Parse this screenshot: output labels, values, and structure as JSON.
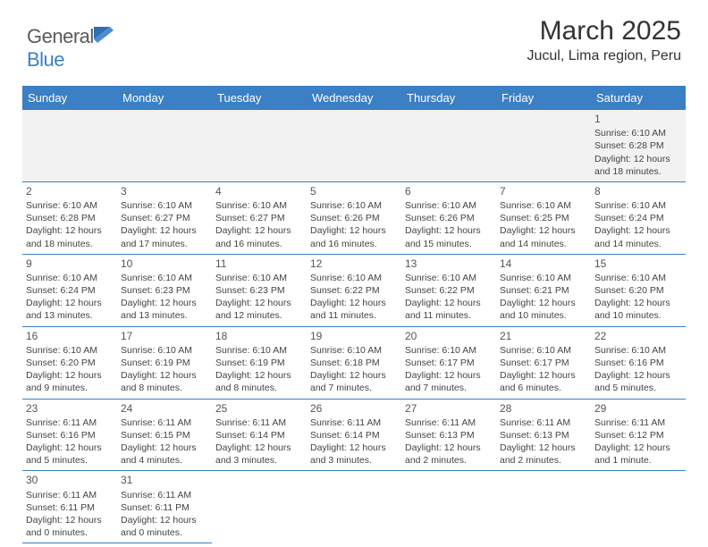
{
  "logo": {
    "text_a": "General",
    "text_b": "Blue"
  },
  "title": "March 2025",
  "location": "Jucul, Lima region, Peru",
  "colors": {
    "header_bg": "#3b7fc4",
    "header_text": "#ffffff",
    "border": "#3b7fc4",
    "blank_bg": "#f2f2f2",
    "text": "#444444"
  },
  "layout": {
    "blanks_before": 6
  },
  "day_headers": [
    "Sunday",
    "Monday",
    "Tuesday",
    "Wednesday",
    "Thursday",
    "Friday",
    "Saturday"
  ],
  "days": [
    {
      "n": "1",
      "sunrise": "Sunrise: 6:10 AM",
      "sunset": "Sunset: 6:28 PM",
      "d1": "Daylight: 12 hours",
      "d2": "and 18 minutes."
    },
    {
      "n": "2",
      "sunrise": "Sunrise: 6:10 AM",
      "sunset": "Sunset: 6:28 PM",
      "d1": "Daylight: 12 hours",
      "d2": "and 18 minutes."
    },
    {
      "n": "3",
      "sunrise": "Sunrise: 6:10 AM",
      "sunset": "Sunset: 6:27 PM",
      "d1": "Daylight: 12 hours",
      "d2": "and 17 minutes."
    },
    {
      "n": "4",
      "sunrise": "Sunrise: 6:10 AM",
      "sunset": "Sunset: 6:27 PM",
      "d1": "Daylight: 12 hours",
      "d2": "and 16 minutes."
    },
    {
      "n": "5",
      "sunrise": "Sunrise: 6:10 AM",
      "sunset": "Sunset: 6:26 PM",
      "d1": "Daylight: 12 hours",
      "d2": "and 16 minutes."
    },
    {
      "n": "6",
      "sunrise": "Sunrise: 6:10 AM",
      "sunset": "Sunset: 6:26 PM",
      "d1": "Daylight: 12 hours",
      "d2": "and 15 minutes."
    },
    {
      "n": "7",
      "sunrise": "Sunrise: 6:10 AM",
      "sunset": "Sunset: 6:25 PM",
      "d1": "Daylight: 12 hours",
      "d2": "and 14 minutes."
    },
    {
      "n": "8",
      "sunrise": "Sunrise: 6:10 AM",
      "sunset": "Sunset: 6:24 PM",
      "d1": "Daylight: 12 hours",
      "d2": "and 14 minutes."
    },
    {
      "n": "9",
      "sunrise": "Sunrise: 6:10 AM",
      "sunset": "Sunset: 6:24 PM",
      "d1": "Daylight: 12 hours",
      "d2": "and 13 minutes."
    },
    {
      "n": "10",
      "sunrise": "Sunrise: 6:10 AM",
      "sunset": "Sunset: 6:23 PM",
      "d1": "Daylight: 12 hours",
      "d2": "and 13 minutes."
    },
    {
      "n": "11",
      "sunrise": "Sunrise: 6:10 AM",
      "sunset": "Sunset: 6:23 PM",
      "d1": "Daylight: 12 hours",
      "d2": "and 12 minutes."
    },
    {
      "n": "12",
      "sunrise": "Sunrise: 6:10 AM",
      "sunset": "Sunset: 6:22 PM",
      "d1": "Daylight: 12 hours",
      "d2": "and 11 minutes."
    },
    {
      "n": "13",
      "sunrise": "Sunrise: 6:10 AM",
      "sunset": "Sunset: 6:22 PM",
      "d1": "Daylight: 12 hours",
      "d2": "and 11 minutes."
    },
    {
      "n": "14",
      "sunrise": "Sunrise: 6:10 AM",
      "sunset": "Sunset: 6:21 PM",
      "d1": "Daylight: 12 hours",
      "d2": "and 10 minutes."
    },
    {
      "n": "15",
      "sunrise": "Sunrise: 6:10 AM",
      "sunset": "Sunset: 6:20 PM",
      "d1": "Daylight: 12 hours",
      "d2": "and 10 minutes."
    },
    {
      "n": "16",
      "sunrise": "Sunrise: 6:10 AM",
      "sunset": "Sunset: 6:20 PM",
      "d1": "Daylight: 12 hours",
      "d2": "and 9 minutes."
    },
    {
      "n": "17",
      "sunrise": "Sunrise: 6:10 AM",
      "sunset": "Sunset: 6:19 PM",
      "d1": "Daylight: 12 hours",
      "d2": "and 8 minutes."
    },
    {
      "n": "18",
      "sunrise": "Sunrise: 6:10 AM",
      "sunset": "Sunset: 6:19 PM",
      "d1": "Daylight: 12 hours",
      "d2": "and 8 minutes."
    },
    {
      "n": "19",
      "sunrise": "Sunrise: 6:10 AM",
      "sunset": "Sunset: 6:18 PM",
      "d1": "Daylight: 12 hours",
      "d2": "and 7 minutes."
    },
    {
      "n": "20",
      "sunrise": "Sunrise: 6:10 AM",
      "sunset": "Sunset: 6:17 PM",
      "d1": "Daylight: 12 hours",
      "d2": "and 7 minutes."
    },
    {
      "n": "21",
      "sunrise": "Sunrise: 6:10 AM",
      "sunset": "Sunset: 6:17 PM",
      "d1": "Daylight: 12 hours",
      "d2": "and 6 minutes."
    },
    {
      "n": "22",
      "sunrise": "Sunrise: 6:10 AM",
      "sunset": "Sunset: 6:16 PM",
      "d1": "Daylight: 12 hours",
      "d2": "and 5 minutes."
    },
    {
      "n": "23",
      "sunrise": "Sunrise: 6:11 AM",
      "sunset": "Sunset: 6:16 PM",
      "d1": "Daylight: 12 hours",
      "d2": "and 5 minutes."
    },
    {
      "n": "24",
      "sunrise": "Sunrise: 6:11 AM",
      "sunset": "Sunset: 6:15 PM",
      "d1": "Daylight: 12 hours",
      "d2": "and 4 minutes."
    },
    {
      "n": "25",
      "sunrise": "Sunrise: 6:11 AM",
      "sunset": "Sunset: 6:14 PM",
      "d1": "Daylight: 12 hours",
      "d2": "and 3 minutes."
    },
    {
      "n": "26",
      "sunrise": "Sunrise: 6:11 AM",
      "sunset": "Sunset: 6:14 PM",
      "d1": "Daylight: 12 hours",
      "d2": "and 3 minutes."
    },
    {
      "n": "27",
      "sunrise": "Sunrise: 6:11 AM",
      "sunset": "Sunset: 6:13 PM",
      "d1": "Daylight: 12 hours",
      "d2": "and 2 minutes."
    },
    {
      "n": "28",
      "sunrise": "Sunrise: 6:11 AM",
      "sunset": "Sunset: 6:13 PM",
      "d1": "Daylight: 12 hours",
      "d2": "and 2 minutes."
    },
    {
      "n": "29",
      "sunrise": "Sunrise: 6:11 AM",
      "sunset": "Sunset: 6:12 PM",
      "d1": "Daylight: 12 hours",
      "d2": "and 1 minute."
    },
    {
      "n": "30",
      "sunrise": "Sunrise: 6:11 AM",
      "sunset": "Sunset: 6:11 PM",
      "d1": "Daylight: 12 hours",
      "d2": "and 0 minutes."
    },
    {
      "n": "31",
      "sunrise": "Sunrise: 6:11 AM",
      "sunset": "Sunset: 6:11 PM",
      "d1": "Daylight: 12 hours",
      "d2": "and 0 minutes."
    }
  ]
}
